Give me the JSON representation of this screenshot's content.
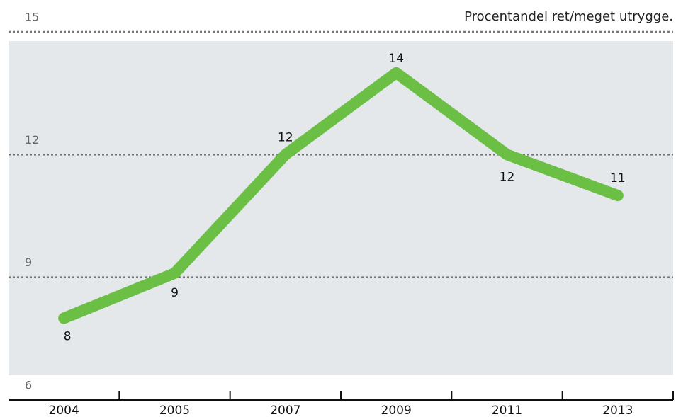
{
  "chart_data": {
    "type": "line",
    "title": "Procentandel ret/meget utrygge.",
    "categories": [
      "2004",
      "2005",
      "2007",
      "2009",
      "2011",
      "2013"
    ],
    "values": [
      8,
      9.1,
      12,
      14,
      12,
      11
    ],
    "value_labels": [
      "8",
      "9",
      "12",
      "14",
      "12",
      "11"
    ],
    "color": "#6cbf45",
    "ylim": [
      6,
      15
    ],
    "yticks": [
      6,
      9,
      12,
      15
    ],
    "grid": true
  }
}
